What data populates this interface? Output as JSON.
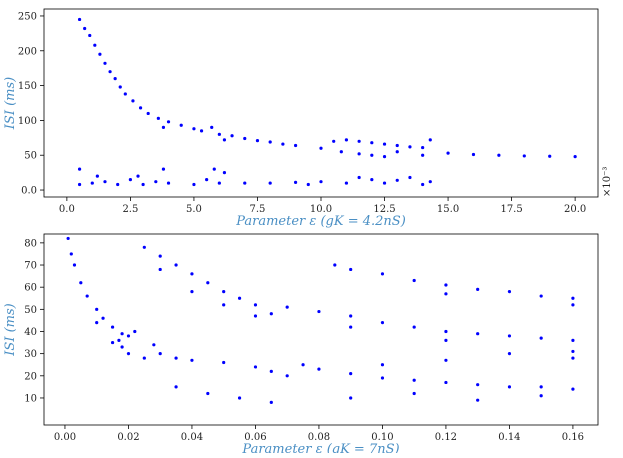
{
  "chart_data": [
    {
      "type": "scatter",
      "color": "#0000ff",
      "y_label": "ISI (ms)",
      "x_label": "Parameter ε (gK = 4.2nS)",
      "annotation": "×10⁻³",
      "xlim": [
        -0.9,
        20.9
      ],
      "ylim": [
        -10,
        260
      ],
      "xticks": [
        {
          "value": 0,
          "label": "0.0"
        },
        2.5,
        {
          "value": 5,
          "label": "5.0"
        },
        7.5,
        {
          "value": 10,
          "label": "10.0"
        },
        12.5,
        {
          "value": 15,
          "label": "15.0"
        },
        17.5,
        {
          "value": 20,
          "label": "20.0"
        }
      ],
      "yticks": [
        {
          "value": 0,
          "label": "0.0"
        },
        50,
        100,
        150,
        200,
        250
      ],
      "x": [
        0.5,
        0.7,
        0.9,
        1.1,
        1.3,
        1.5,
        1.7,
        1.9,
        2.1,
        2.3,
        2.6,
        2.9,
        3.2,
        3.6,
        3.8,
        4.0,
        4.5,
        5.0,
        5.3,
        5.7,
        6.0,
        6.2,
        6.5,
        7,
        7.5,
        8,
        8.5,
        9,
        10,
        10.5,
        11,
        11.5,
        12,
        12.5,
        13,
        13.5,
        14,
        10.8,
        11.5,
        12,
        12.5,
        13,
        14,
        14.3,
        15,
        16,
        17,
        18,
        19,
        20,
        0.5,
        0.5,
        1,
        1.5,
        2,
        2.5,
        3,
        3.5,
        3.8,
        4,
        5,
        5.5,
        6,
        6.2,
        7,
        8,
        9,
        10,
        11,
        12,
        12.5,
        13,
        14,
        14.3,
        1.2,
        2.8,
        5.8,
        9.5,
        11.5,
        13.5
      ],
      "values": [
        245,
        232,
        222,
        208,
        195,
        182,
        170,
        160,
        148,
        138,
        128,
        118,
        110,
        103,
        90,
        98,
        93,
        88,
        85,
        90,
        80,
        72,
        78,
        74,
        71,
        69,
        66,
        64,
        60,
        70,
        72,
        70,
        68,
        66,
        64,
        62,
        61,
        55,
        52,
        50,
        48,
        55,
        50,
        72,
        53,
        51,
        50,
        49,
        48.5,
        48,
        8,
        30,
        10,
        12,
        8,
        15,
        8,
        12,
        30,
        10,
        8,
        15,
        10,
        25,
        10,
        10,
        11,
        12,
        10,
        15,
        10,
        14,
        8,
        12,
        20,
        20,
        30,
        8,
        18,
        18
      ]
    },
    {
      "type": "scatter",
      "color": "#0000ff",
      "y_label": "ISI (ms)",
      "x_label": "Parameter ε (gK = 7nS)",
      "xlim": [
        -0.0066,
        0.1679
      ],
      "ylim": [
        -2.2,
        84
      ],
      "xticks": [
        {
          "value": 0,
          "label": "0.00"
        },
        0.02,
        0.04,
        0.06,
        0.08,
        {
          "value": 0.1,
          "label": "0.10"
        },
        0.12,
        0.14,
        0.16
      ],
      "yticks": [
        10,
        20,
        30,
        40,
        50,
        60,
        70,
        80
      ],
      "x": [
        0.001,
        0.002,
        0.003,
        0.005,
        0.007,
        0.01,
        0.012,
        0.015,
        0.018,
        0.02,
        0.022,
        0.01,
        0.015,
        0.018,
        0.02,
        0.025,
        0.017,
        0.025,
        0.03,
        0.035,
        0.04,
        0.045,
        0.05,
        0.055,
        0.06,
        0.065,
        0.03,
        0.04,
        0.05,
        0.06,
        0.07,
        0.08,
        0.09,
        0.1,
        0.11,
        0.12,
        0.13,
        0.14,
        0.15,
        0.16,
        0.09,
        0.12,
        0.16,
        0.085,
        0.09,
        0.1,
        0.11,
        0.12,
        0.13,
        0.14,
        0.15,
        0.16,
        0.12,
        0.16,
        0.028,
        0.03,
        0.035,
        0.04,
        0.05,
        0.06,
        0.065,
        0.07,
        0.075,
        0.08,
        0.09,
        0.1,
        0.11,
        0.12,
        0.13,
        0.14,
        0.15,
        0.16,
        0.035,
        0.045,
        0.055,
        0.065,
        0.09,
        0.11,
        0.13,
        0.15,
        0.1,
        0.12,
        0.14,
        0.16
      ],
      "values": [
        82,
        75,
        70,
        62,
        56,
        50,
        46,
        42,
        39,
        38,
        40,
        44,
        35,
        33,
        30,
        28,
        36,
        78,
        74,
        70,
        66,
        62,
        58,
        55,
        52,
        48,
        68,
        58,
        52,
        47,
        51,
        49,
        47,
        44,
        42,
        40,
        39,
        38,
        37,
        36,
        42,
        36,
        31,
        70,
        68,
        66,
        63,
        61,
        59,
        58,
        56,
        55,
        57,
        52,
        34,
        30,
        28,
        27,
        26,
        24,
        22,
        20,
        25,
        23,
        21,
        19,
        18,
        17,
        16,
        15,
        15,
        14,
        15,
        12,
        10,
        8,
        10,
        12,
        9,
        11,
        25,
        27,
        30,
        28
      ]
    }
  ]
}
